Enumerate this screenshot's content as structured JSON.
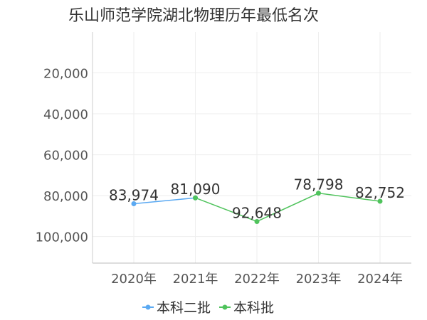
{
  "chart_data": {
    "type": "line",
    "title": "乐山师范学院湖北物理历年最低名次",
    "categories": [
      "2020年",
      "2021年",
      "2022年",
      "2023年",
      "2024年"
    ],
    "y_ticks": [
      "20,000",
      "40,000",
      "60,000",
      "80,000",
      "100,000"
    ],
    "y_tick_values": [
      20000,
      40000,
      60000,
      80000,
      100000
    ],
    "ylim": [
      0,
      113000
    ],
    "y_inverted": true,
    "grid": true,
    "legend_position": "bottom",
    "series": [
      {
        "name": "本科二批",
        "color": "#5aa9f2",
        "points": [
          {
            "x": "2020年",
            "y": 83974,
            "label": "83,974"
          },
          {
            "x": "2021年",
            "y": 81090,
            "label": "81,090"
          }
        ]
      },
      {
        "name": "本科批",
        "color": "#4fc35c",
        "points": [
          {
            "x": "2021年",
            "y": 81090,
            "label": "81,090"
          },
          {
            "x": "2022年",
            "y": 92648,
            "label": "92,648"
          },
          {
            "x": "2023年",
            "y": 78798,
            "label": "78,798"
          },
          {
            "x": "2024年",
            "y": 82752,
            "label": "82,752"
          }
        ]
      }
    ]
  }
}
